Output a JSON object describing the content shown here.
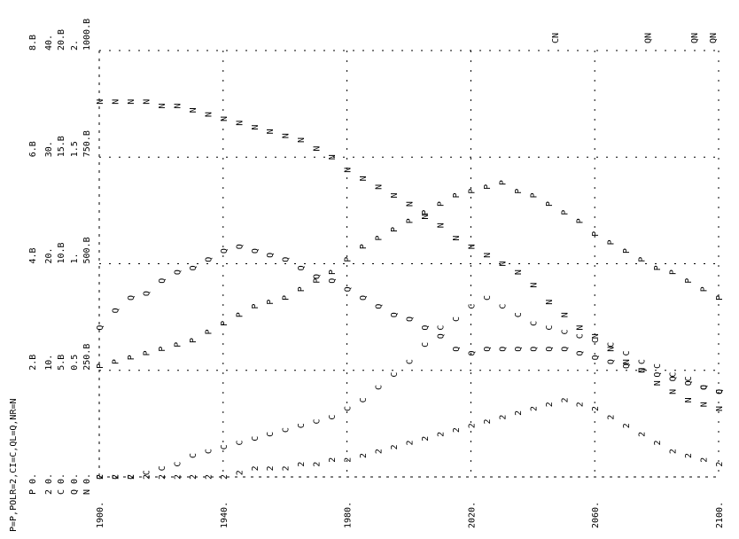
{
  "chart_data": {
    "type": "scatter",
    "orientation": "rotated-90",
    "legend": "P=P,POLR=2,CI=C,QL=Q,NR=N",
    "x_ticks": [
      "1900.",
      "1940.",
      "1980.",
      "2020.",
      "2060.",
      "2100."
    ],
    "x_range": [
      1900,
      2100
    ],
    "scale_columns": [
      {
        "symbol": "P",
        "labels": [
          "0.",
          "2.B",
          "4.B",
          "6.B",
          "8.B"
        ]
      },
      {
        "symbol": "2",
        "labels": [
          "0.",
          "10.",
          "20.",
          "30.",
          "40."
        ]
      },
      {
        "symbol": "C",
        "labels": [
          "0.",
          "5.B",
          "10.B",
          "15.B",
          "20.B"
        ]
      },
      {
        "symbol": "Q",
        "labels": [
          "0.",
          "0.5",
          "1.",
          "1.5",
          "2."
        ]
      },
      {
        "symbol": "N",
        "labels": [
          "0.",
          "250.B",
          "500.B",
          "750.B",
          "1000.B"
        ]
      }
    ],
    "y_range": [
      0,
      1
    ],
    "series": [
      {
        "name": "P",
        "symbol": "P",
        "x": [
          1900,
          1905,
          1910,
          1915,
          1920,
          1925,
          1930,
          1935,
          1940,
          1945,
          1950,
          1955,
          1960,
          1965,
          1970,
          1975,
          1980,
          1985,
          1990,
          1995,
          2000,
          2005,
          2010,
          2015,
          2020,
          2025,
          2030,
          2035,
          2040,
          2045,
          2050,
          2055,
          2060,
          2065,
          2070,
          2075,
          2080,
          2085,
          2090,
          2095,
          2100
        ],
        "y": [
          0.26,
          0.27,
          0.28,
          0.29,
          0.3,
          0.31,
          0.32,
          0.34,
          0.36,
          0.38,
          0.4,
          0.41,
          0.42,
          0.44,
          0.46,
          0.48,
          0.51,
          0.54,
          0.56,
          0.58,
          0.6,
          0.62,
          0.64,
          0.66,
          0.67,
          0.68,
          0.69,
          0.67,
          0.66,
          0.64,
          0.62,
          0.6,
          0.57,
          0.55,
          0.53,
          0.51,
          0.49,
          0.48,
          0.46,
          0.44,
          0.42
        ]
      },
      {
        "name": "2",
        "symbol": "2",
        "x": [
          1900,
          1905,
          1910,
          1915,
          1920,
          1925,
          1930,
          1935,
          1940,
          1945,
          1950,
          1955,
          1960,
          1965,
          1970,
          1975,
          1980,
          1985,
          1990,
          1995,
          2000,
          2005,
          2010,
          2015,
          2020,
          2025,
          2030,
          2035,
          2040,
          2045,
          2050,
          2055,
          2060,
          2065,
          2070,
          2075,
          2080,
          2085,
          2090,
          2095,
          2100
        ],
        "y": [
          0.0,
          0.0,
          0.0,
          0.0,
          0.0,
          0.0,
          0.0,
          0.0,
          0.0,
          0.01,
          0.02,
          0.02,
          0.02,
          0.03,
          0.03,
          0.04,
          0.04,
          0.05,
          0.06,
          0.07,
          0.08,
          0.09,
          0.1,
          0.11,
          0.12,
          0.13,
          0.14,
          0.15,
          0.16,
          0.17,
          0.18,
          0.17,
          0.16,
          0.14,
          0.12,
          0.1,
          0.08,
          0.06,
          0.05,
          0.04,
          0.03
        ]
      },
      {
        "name": "C",
        "symbol": "C",
        "x": [
          1900,
          1905,
          1910,
          1915,
          1920,
          1925,
          1930,
          1935,
          1940,
          1945,
          1950,
          1955,
          1960,
          1965,
          1970,
          1975,
          1980,
          1985,
          1990,
          1995,
          2000,
          2005,
          2010,
          2015,
          2020,
          2025,
          2030,
          2035,
          2040,
          2045,
          2050,
          2055,
          2060,
          2065,
          2070,
          2075,
          2080,
          2085,
          2090,
          2095,
          2100
        ],
        "y": [
          0.0,
          0.0,
          0.0,
          0.01,
          0.02,
          0.03,
          0.05,
          0.06,
          0.07,
          0.08,
          0.09,
          0.1,
          0.11,
          0.12,
          0.13,
          0.14,
          0.16,
          0.18,
          0.21,
          0.24,
          0.27,
          0.31,
          0.35,
          0.37,
          0.4,
          0.42,
          0.4,
          0.38,
          0.36,
          0.35,
          0.34,
          0.33,
          0.32,
          0.31,
          0.29,
          0.27,
          0.26,
          0.24,
          0.23,
          0.21,
          0.2
        ]
      },
      {
        "name": "Q",
        "symbol": "Q",
        "x": [
          1900,
          1905,
          1910,
          1915,
          1920,
          1925,
          1930,
          1935,
          1940,
          1945,
          1950,
          1955,
          1960,
          1965,
          1970,
          1975,
          1980,
          1985,
          1990,
          1995,
          2000,
          2005,
          2010,
          2015,
          2020,
          2025,
          2030,
          2035,
          2040,
          2045,
          2050,
          2055,
          2060,
          2065,
          2070,
          2075,
          2080,
          2085,
          2090,
          2095,
          2100
        ],
        "y": [
          0.35,
          0.39,
          0.42,
          0.43,
          0.46,
          0.48,
          0.49,
          0.51,
          0.53,
          0.54,
          0.53,
          0.52,
          0.51,
          0.49,
          0.47,
          0.46,
          0.44,
          0.42,
          0.4,
          0.38,
          0.37,
          0.35,
          0.33,
          0.3,
          0.29,
          0.3,
          0.3,
          0.3,
          0.3,
          0.3,
          0.3,
          0.29,
          0.28,
          0.27,
          0.26,
          0.25,
          0.24,
          0.23,
          0.22,
          0.21,
          0.2
        ]
      },
      {
        "name": "N",
        "symbol": "N",
        "x": [
          1900,
          1905,
          1910,
          1915,
          1920,
          1925,
          1930,
          1935,
          1940,
          1945,
          1950,
          1955,
          1960,
          1965,
          1970,
          1975,
          1980,
          1985,
          1990,
          1995,
          2000,
          2005,
          2010,
          2015,
          2020,
          2025,
          2030,
          2035,
          2040,
          2045,
          2050,
          2055,
          2060,
          2065,
          2070,
          2075,
          2080,
          2085,
          2090,
          2095,
          2100
        ],
        "y": [
          0.88,
          0.88,
          0.88,
          0.88,
          0.87,
          0.87,
          0.86,
          0.85,
          0.84,
          0.83,
          0.82,
          0.81,
          0.8,
          0.79,
          0.77,
          0.75,
          0.72,
          0.7,
          0.68,
          0.66,
          0.64,
          0.61,
          0.59,
          0.56,
          0.54,
          0.52,
          0.5,
          0.48,
          0.45,
          0.41,
          0.38,
          0.35,
          0.33,
          0.3,
          0.27,
          0.25,
          0.22,
          0.2,
          0.18,
          0.17,
          0.16
        ]
      }
    ],
    "top_markers": [
      {
        "label": "CN",
        "x": 2047
      },
      {
        "label": "QN",
        "x": 2077
      },
      {
        "label": "QN",
        "x": 2092
      },
      {
        "label": "QN",
        "x": 2098
      }
    ]
  }
}
